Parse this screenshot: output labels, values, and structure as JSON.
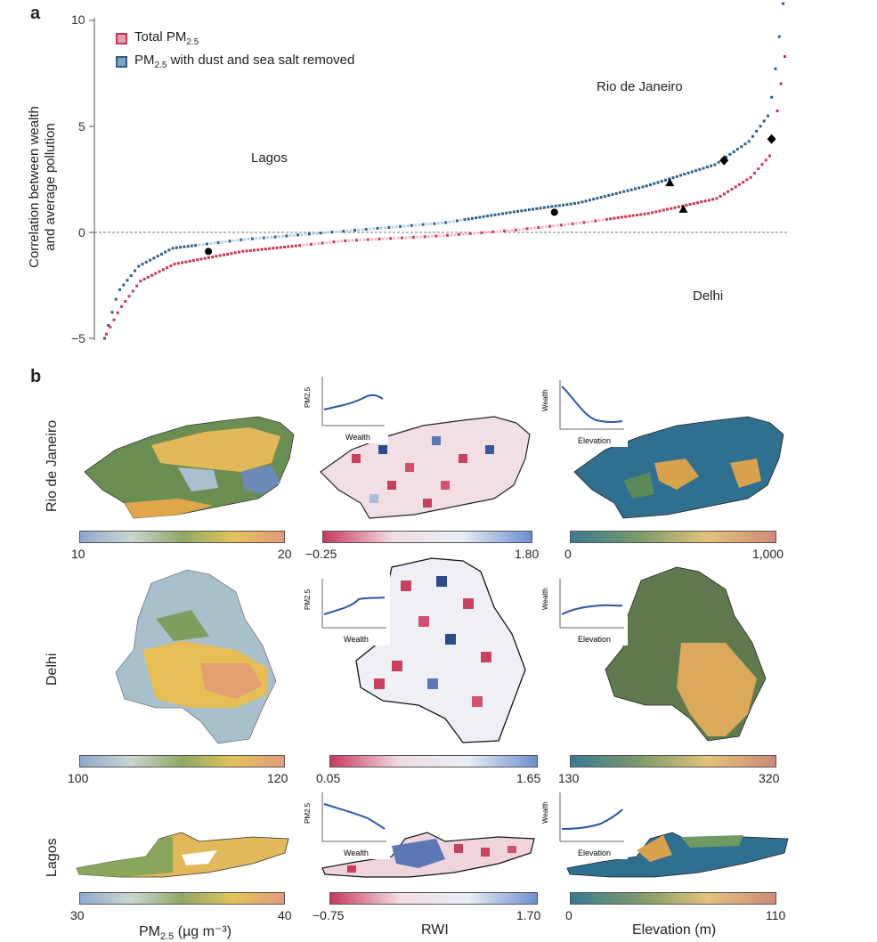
{
  "panel_a": {
    "letter": "a",
    "legend": [
      {
        "label": "Total PM",
        "sub": "2.5",
        "suffix": "",
        "color": "#cc3355"
      },
      {
        "label": "PM",
        "sub": "2.5",
        "suffix": " with dust and sea salt removed",
        "color": "#2f5f86"
      }
    ],
    "ylabel_line1": "Correlation between wealth",
    "ylabel_line2": "and average pollution",
    "cities": {
      "lagos": "Lagos",
      "rio": "Rio de Janeiro",
      "delhi": "Delhi"
    }
  },
  "chart_data": {
    "type": "scatter",
    "title": "",
    "xlabel": "",
    "ylabel": "Correlation between wealth and average pollution",
    "ylim": [
      -5,
      10
    ],
    "yticks": [
      "10",
      "5",
      "0",
      "−5"
    ],
    "grid": false,
    "legend_position": "top-left",
    "series": [
      {
        "name": "Total PM2.5",
        "color": "#cc3355",
        "description_points": [
          [
            0,
            -4.8
          ],
          [
            0.02,
            -3.6
          ],
          [
            0.05,
            -2.3
          ],
          [
            0.1,
            -1.5
          ],
          [
            0.2,
            -0.9
          ],
          [
            0.35,
            -0.4
          ],
          [
            0.5,
            -0.15
          ],
          [
            0.6,
            0.1
          ],
          [
            0.7,
            0.45
          ],
          [
            0.8,
            0.9
          ],
          [
            0.9,
            1.6
          ],
          [
            0.95,
            2.6
          ],
          [
            0.98,
            3.7
          ],
          [
            0.99,
            6.0
          ],
          [
            1.0,
            8.3
          ]
        ]
      },
      {
        "name": "PM2.5 with dust and sea salt removed",
        "color": "#2f5f86",
        "description_points": [
          [
            0,
            -5.0
          ],
          [
            0.02,
            -2.8
          ],
          [
            0.05,
            -1.6
          ],
          [
            0.1,
            -0.75
          ],
          [
            0.2,
            -0.35
          ],
          [
            0.35,
            0.05
          ],
          [
            0.5,
            0.45
          ],
          [
            0.6,
            0.95
          ],
          [
            0.7,
            1.4
          ],
          [
            0.8,
            2.2
          ],
          [
            0.9,
            3.2
          ],
          [
            0.95,
            4.3
          ],
          [
            0.98,
            5.6
          ],
          [
            0.99,
            8.0
          ],
          [
            1.0,
            10.8
          ]
        ]
      }
    ],
    "highlighted": [
      {
        "city": "Lagos",
        "marker": "circle",
        "total": -0.9,
        "removed": -0.9
      },
      {
        "city": "Rio de Janeiro",
        "marker": "triangle",
        "total": 1.1,
        "removed": 2.35
      },
      {
        "city": "Delhi",
        "marker": "diamond",
        "total": 4.4,
        "removed": 3.4
      },
      {
        "city": "Rio de Janeiro",
        "marker": "circle",
        "total": 0.95,
        "removed": 0.95
      }
    ]
  },
  "panel_b": {
    "letter": "b",
    "rows": [
      "Rio de Janeiro",
      "Delhi",
      "Lagos"
    ],
    "colorbars": [
      [
        {
          "min": "10",
          "max": "20"
        },
        {
          "min": "−0.25",
          "max": "1.80"
        },
        {
          "min": "0",
          "max": "1,000"
        }
      ],
      [
        {
          "min": "100",
          "max": "120"
        },
        {
          "min": "0.05",
          "max": "1.65"
        },
        {
          "min": "130",
          "max": "320"
        }
      ],
      [
        {
          "min": "30",
          "max": "40"
        },
        {
          "min": "−0.75",
          "max": "1.70"
        },
        {
          "min": "0",
          "max": "110"
        }
      ]
    ],
    "col_titles": {
      "pm_main": "PM",
      "pm_sub": "2.5",
      "pm_unit": " (µg m⁻³)",
      "rwi": "RWI",
      "elev": "Elevation (m)"
    },
    "insets": {
      "wealth_label": "Wealth",
      "elevation_label": "Elevation",
      "pm_label": "PM2.5"
    }
  }
}
